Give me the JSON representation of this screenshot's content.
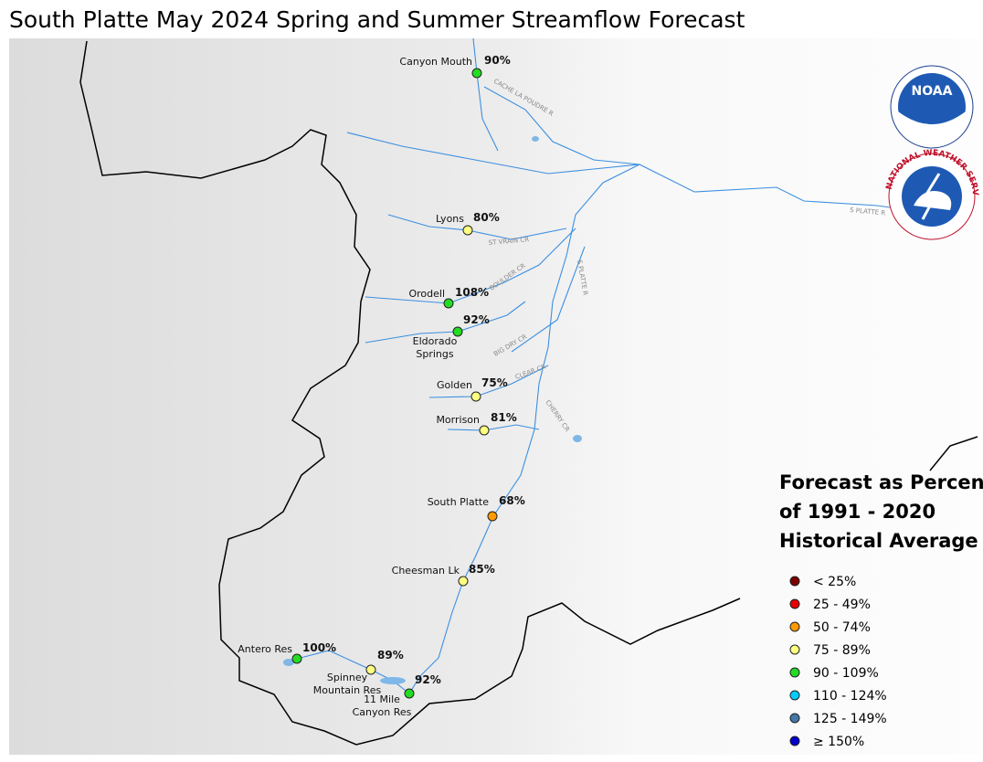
{
  "header": {
    "title": "South Platte May 2024 Spring and Summer Streamflow Forecast"
  },
  "logos": {
    "noaa": "NOAA",
    "nws": "NATIONAL WEATHER SERVICE"
  },
  "stations": [
    {
      "name": [
        "Canyon Mouth"
      ],
      "percent": "90%",
      "color": "#22dd22"
    },
    {
      "name": [
        "Lyons"
      ],
      "percent": "80%",
      "color": "#ffff80"
    },
    {
      "name": [
        "Orodell"
      ],
      "percent": "108%",
      "color": "#22dd22"
    },
    {
      "name": [
        "Eldorado",
        "Springs"
      ],
      "percent": "92%",
      "color": "#22dd22"
    },
    {
      "name": [
        "Golden"
      ],
      "percent": "75%",
      "color": "#ffff80"
    },
    {
      "name": [
        "Morrison"
      ],
      "percent": "81%",
      "color": "#ffff80"
    },
    {
      "name": [
        "South Platte"
      ],
      "percent": "68%",
      "color": "#ff9900"
    },
    {
      "name": [
        "Cheesman Lk"
      ],
      "percent": "85%",
      "color": "#ffff80"
    },
    {
      "name": [
        "Antero Res"
      ],
      "percent": "100%",
      "color": "#22dd22"
    },
    {
      "name": [
        "Spinney",
        "Mountain Res"
      ],
      "percent": "89%",
      "color": "#ffff80"
    },
    {
      "name": [
        "11 Mile",
        "Canyon Res"
      ],
      "percent": "92%",
      "color": "#22dd22"
    }
  ],
  "rivers": [
    "CACHE LA POUDRE R",
    "S PLATTE R",
    "ST VRAIN CR",
    "BOULDER CR",
    "BIG DRY CR",
    "CLEAR CR",
    "CHERRY CR",
    "S PLATTE R"
  ],
  "legend": {
    "title": [
      "Forecast as Percent",
      "of 1991 - 2020",
      "Historical Average"
    ],
    "items": [
      {
        "label": "< 25%",
        "color": "#7b0000"
      },
      {
        "label": "25 - 49%",
        "color": "#e60000"
      },
      {
        "label": "50 - 74%",
        "color": "#ff9900"
      },
      {
        "label": "75 - 89%",
        "color": "#ffff80"
      },
      {
        "label": "90 - 109%",
        "color": "#22dd22"
      },
      {
        "label": "110 - 124%",
        "color": "#00ccff"
      },
      {
        "label": "125 - 149%",
        "color": "#4477aa"
      },
      {
        "label": "≥ 150%",
        "color": "#0000cc"
      }
    ]
  }
}
